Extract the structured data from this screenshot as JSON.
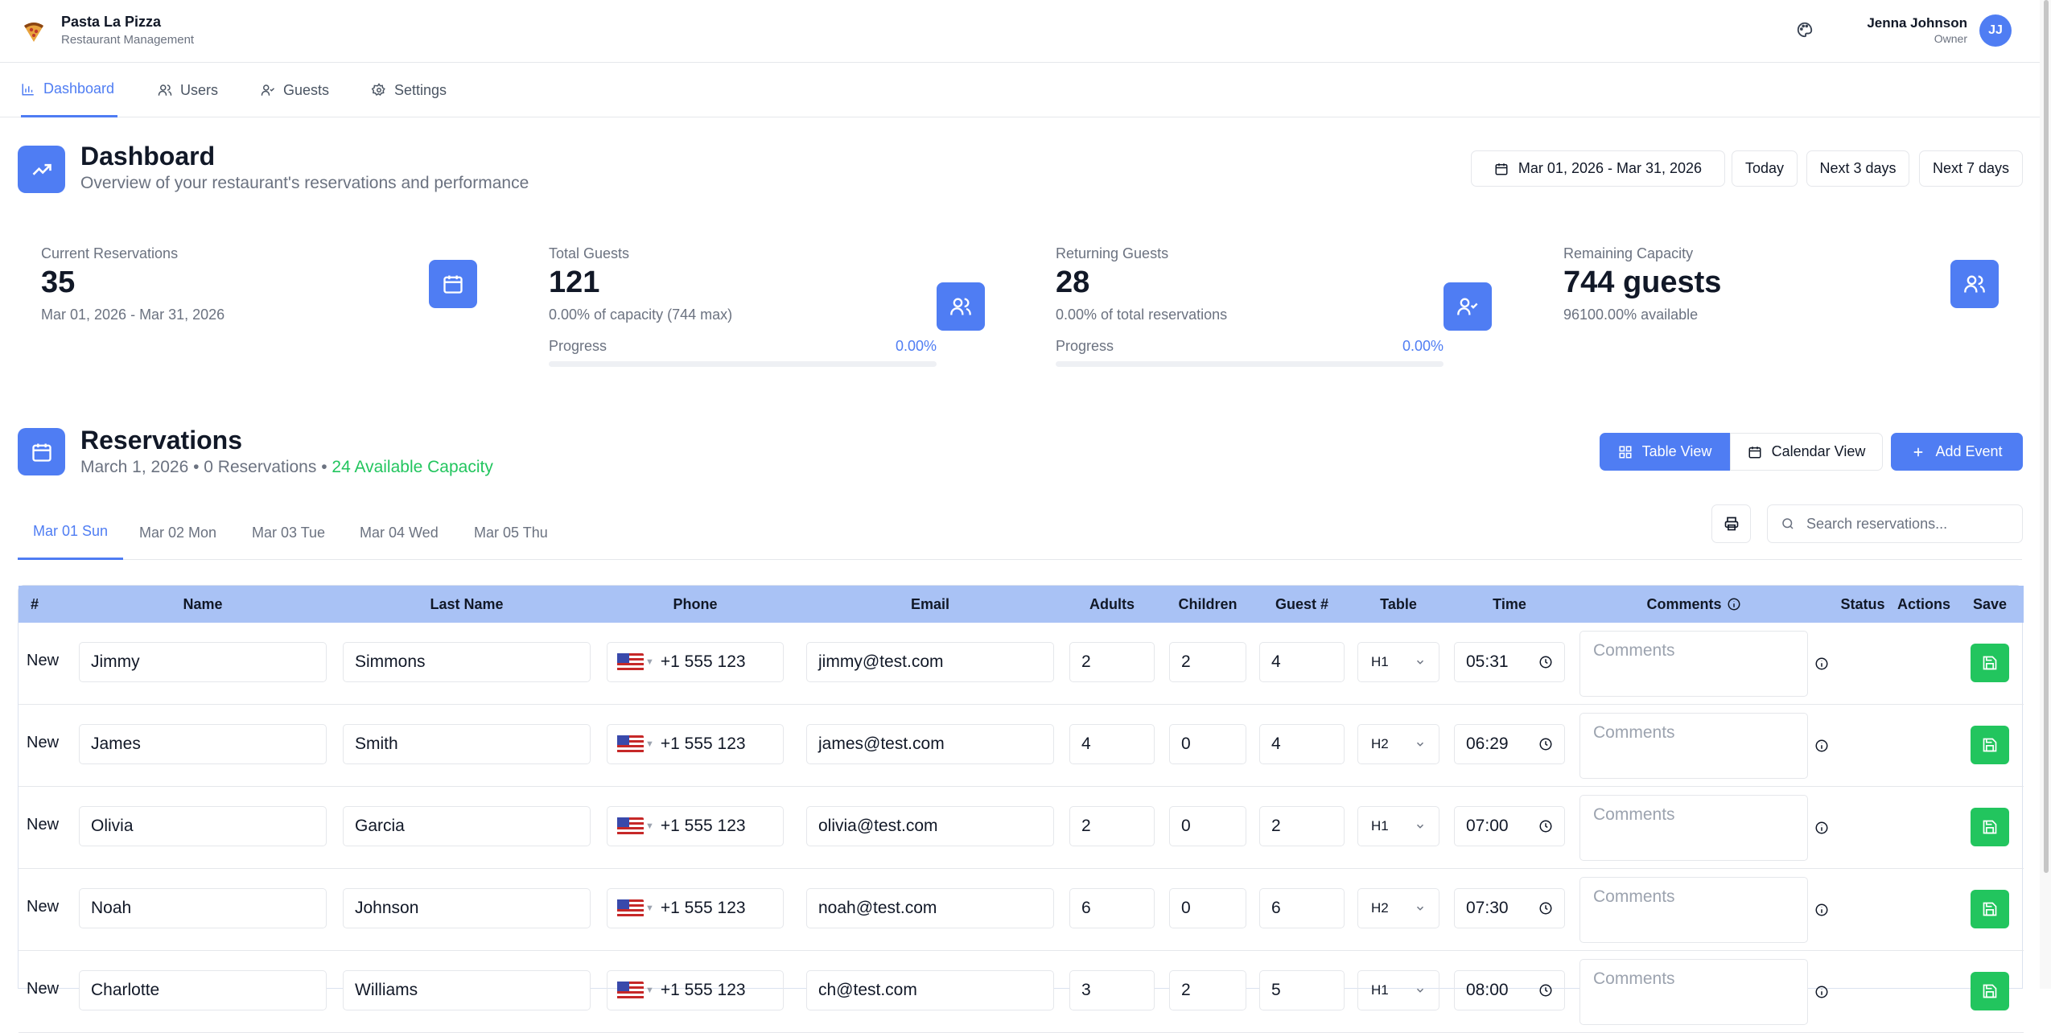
{
  "app": {
    "name": "Pasta La Pizza",
    "subtitle": "Restaurant Management"
  },
  "user": {
    "name": "Jenna Johnson",
    "role": "Owner",
    "initials": "JJ"
  },
  "nav": [
    {
      "label": "Dashboard",
      "icon": "bar-chart-icon",
      "active": true
    },
    {
      "label": "Users",
      "icon": "users-icon"
    },
    {
      "label": "Guests",
      "icon": "user-check-icon"
    },
    {
      "label": "Settings",
      "icon": "gear-icon"
    }
  ],
  "dashboard": {
    "title": "Dashboard",
    "subtitle": "Overview of your restaurant's reservations and performance",
    "date_range": "Mar 01, 2026 - Mar 31, 2026",
    "quick_filters": [
      "Today",
      "Next 3 days",
      "Next 7 days"
    ]
  },
  "stats": [
    {
      "label": "Current Reservations",
      "value": "35",
      "sub": "Mar 01, 2026 - Mar 31, 2026"
    },
    {
      "label": "Total Guests",
      "value": "121",
      "sub": "0.00% of capacity (744 max)",
      "progress_label": "Progress",
      "progress_pct": "0.00%",
      "progress_value": 0
    },
    {
      "label": "Returning Guests",
      "value": "28",
      "sub": "0.00% of total reservations",
      "progress_label": "Progress",
      "progress_pct": "0.00%",
      "progress_value": 0
    },
    {
      "label": "Remaining Capacity",
      "value": "744 guests",
      "sub": "96100.00% available"
    }
  ],
  "reservations": {
    "title": "Reservations",
    "date": "March 1, 2026",
    "count": "0 Reservations",
    "capacity": "24 Available Capacity",
    "sep": "•",
    "table_view": "Table View",
    "calendar_view": "Calendar View",
    "add_event": "Add Event",
    "search_placeholder": "Search reservations...",
    "days": [
      "Mar 01 Sun",
      "Mar 02 Mon",
      "Mar 03 Tue",
      "Mar 04 Wed",
      "Mar 05 Thu"
    ],
    "columns": [
      "#",
      "Name",
      "Last Name",
      "Phone",
      "Email",
      "Adults",
      "Children",
      "Guest #",
      "Table",
      "Time",
      "Comments",
      "Status",
      "Actions",
      "Save"
    ],
    "comments_placeholder": "Comments",
    "rows": [
      {
        "num": "New",
        "name": "Jimmy",
        "last": "Simmons",
        "phone": "+1 555 123",
        "email": "jimmy@test.com",
        "adults": "2",
        "children": "2",
        "guests": "4",
        "table": "H1",
        "time": "05:31"
      },
      {
        "num": "New",
        "name": "James",
        "last": "Smith",
        "phone": "+1 555 123",
        "email": "james@test.com",
        "adults": "4",
        "children": "0",
        "guests": "4",
        "table": "H2",
        "time": "06:29"
      },
      {
        "num": "New",
        "name": "Olivia",
        "last": "Garcia",
        "phone": "+1 555 123",
        "email": "olivia@test.com",
        "adults": "2",
        "children": "0",
        "guests": "2",
        "table": "H1",
        "time": "07:00"
      },
      {
        "num": "New",
        "name": "Noah",
        "last": "Johnson",
        "phone": "+1 555 123",
        "email": "noah@test.com",
        "adults": "6",
        "children": "0",
        "guests": "6",
        "table": "H2",
        "time": "07:30"
      },
      {
        "num": "New",
        "name": "Charlotte",
        "last": "Williams",
        "phone": "+1 555 123",
        "email": "ch@test.com",
        "adults": "3",
        "children": "2",
        "guests": "5",
        "table": "H1",
        "time": "08:00"
      }
    ]
  },
  "colors": {
    "accent": "#4f7df3",
    "success": "#22c55e",
    "table_header": "#a9c2f5"
  }
}
